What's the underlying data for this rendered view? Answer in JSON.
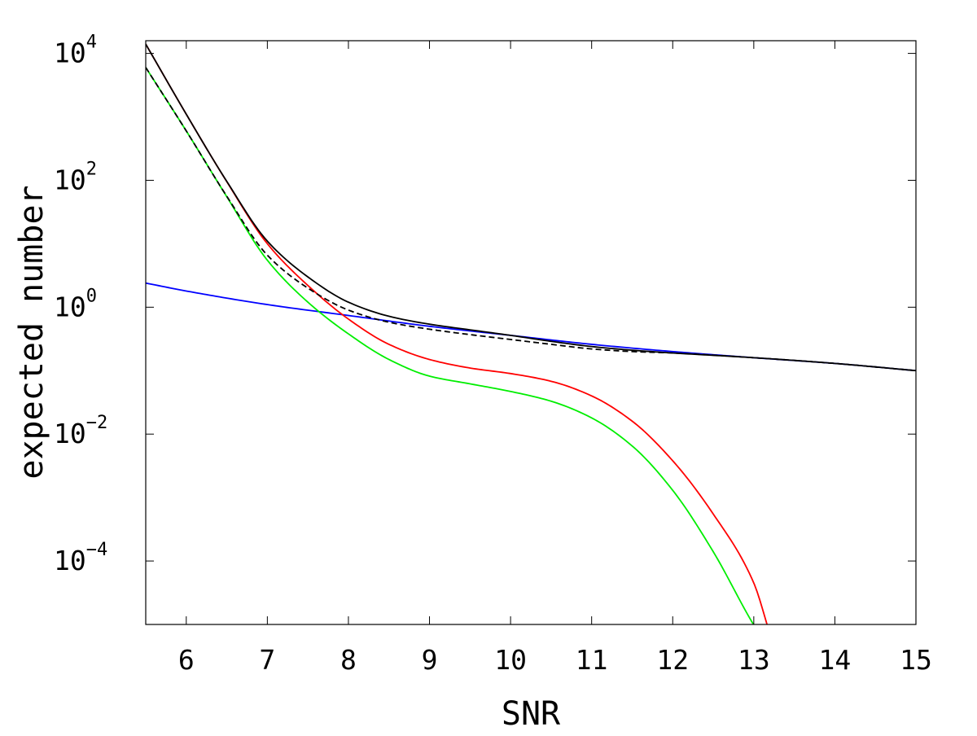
{
  "chart_data": {
    "type": "line",
    "title": "",
    "xlabel": "SNR",
    "ylabel": "expected number",
    "xlim": [
      5.5,
      15
    ],
    "ylim_log10": [
      -5,
      4.2
    ],
    "yscale": "log",
    "grid": false,
    "legend": "none",
    "xticks": [
      6,
      7,
      8,
      9,
      10,
      11,
      12,
      13,
      14,
      15
    ],
    "xtick_labels": [
      "6",
      "7",
      "8",
      "9",
      "10",
      "11",
      "12",
      "13",
      "14",
      "15"
    ],
    "yticks": [
      {
        "base": "10",
        "exp": "4",
        "log10": 4
      },
      {
        "base": "10",
        "exp": "2",
        "log10": 2
      },
      {
        "base": "10",
        "exp": "0",
        "log10": 0
      },
      {
        "base": "10",
        "exp": "−2",
        "log10": -2
      },
      {
        "base": "10",
        "exp": "−4",
        "log10": -4
      }
    ],
    "series": [
      {
        "color": "#0000ff",
        "dash": "solid",
        "x": [
          5.5,
          6,
          7,
          8,
          9,
          10,
          11,
          12,
          13,
          14,
          15
        ],
        "y": [
          2.4,
          1.8,
          1.1,
          0.74,
          0.5,
          0.36,
          0.26,
          0.2,
          0.16,
          0.13,
          0.1
        ]
      },
      {
        "color": "#00ee00",
        "dash": "solid",
        "x": [
          5.5,
          6,
          6.5,
          7,
          7.5,
          8,
          8.5,
          9,
          9.5,
          10,
          10.5,
          11,
          11.5,
          12,
          12.5,
          13,
          13.1
        ],
        "y": [
          6000,
          600,
          55,
          5.5,
          1.2,
          0.38,
          0.15,
          0.082,
          0.062,
          0.047,
          0.033,
          0.018,
          0.0065,
          0.0013,
          0.00014,
          9.8e-06,
          6.2e-06
        ]
      },
      {
        "color": "#ff0000",
        "dash": "solid",
        "x": [
          5.5,
          6,
          6.5,
          7,
          7.5,
          8,
          8.5,
          9,
          9.5,
          10,
          10.5,
          11,
          11.5,
          12,
          12.5,
          13,
          13.2
        ],
        "y": [
          14000,
          1100,
          95,
          10,
          2.2,
          0.65,
          0.26,
          0.15,
          0.11,
          0.09,
          0.068,
          0.04,
          0.016,
          0.0038,
          0.00055,
          4.5e-05,
          7e-06
        ]
      },
      {
        "color": "#000000",
        "dash": "dashed",
        "x": [
          5.5,
          6,
          6.5,
          7,
          7.5,
          8,
          8.5,
          9,
          9.5,
          10,
          10.5,
          11,
          11.5,
          12,
          13,
          14,
          15
        ],
        "y": [
          6000,
          600,
          56,
          6.6,
          2.0,
          0.9,
          0.58,
          0.45,
          0.37,
          0.31,
          0.26,
          0.22,
          0.2,
          0.19,
          0.16,
          0.13,
          0.1
        ]
      },
      {
        "color": "#000000",
        "dash": "solid",
        "x": [
          5.5,
          6,
          6.5,
          7,
          7.5,
          8,
          8.5,
          9,
          9.5,
          10,
          10.5,
          11,
          11.5,
          12,
          13,
          14,
          15
        ],
        "y": [
          14000,
          1100,
          96,
          11,
          3.0,
          1.2,
          0.72,
          0.54,
          0.44,
          0.36,
          0.29,
          0.24,
          0.21,
          0.19,
          0.16,
          0.13,
          0.1
        ]
      }
    ]
  }
}
